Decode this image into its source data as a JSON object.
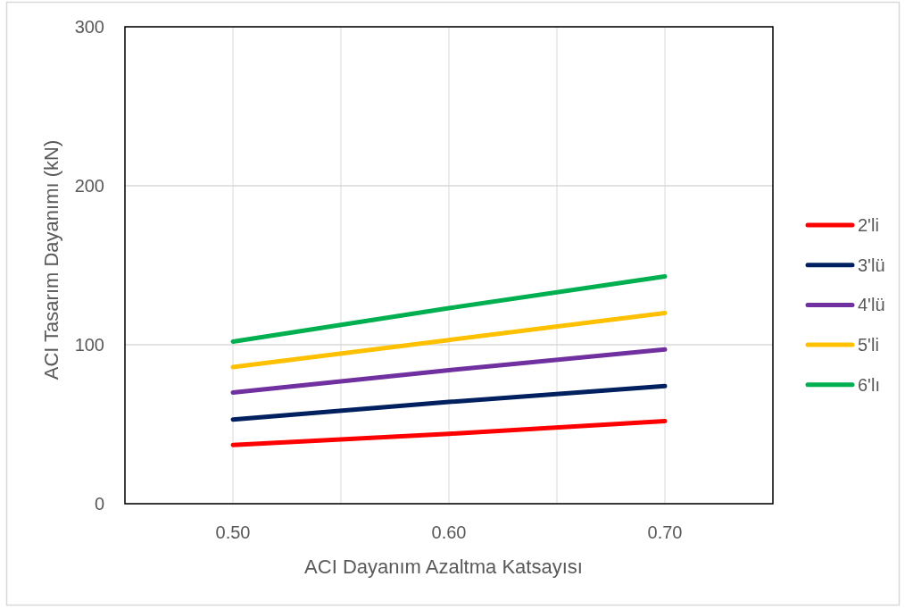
{
  "chart_data": {
    "type": "line",
    "xlabel": "ACI Dayanım Azaltma Katsayısı",
    "ylabel": "ACI Tasarım Dayanımı (kN)",
    "x": [
      0.5,
      0.6,
      0.7
    ],
    "series": [
      {
        "name": "2'li",
        "color": "#ff0000",
        "values": [
          37,
          44,
          52
        ]
      },
      {
        "name": "3'lü",
        "color": "#002060",
        "values": [
          53,
          64,
          74
        ]
      },
      {
        "name": "4'lü",
        "color": "#7030a0",
        "values": [
          70,
          84,
          97
        ]
      },
      {
        "name": "5'li",
        "color": "#ffc000",
        "values": [
          86,
          103,
          120
        ]
      },
      {
        "name": "6'lı",
        "color": "#00b050",
        "values": [
          102,
          123,
          143
        ]
      }
    ],
    "xlim": [
      0.45,
      0.75
    ],
    "xticks": [
      {
        "value": 0.5,
        "label": "0.50"
      },
      {
        "value": 0.55,
        "label": null
      },
      {
        "value": 0.6,
        "label": "0.60"
      },
      {
        "value": 0.65,
        "label": null
      },
      {
        "value": 0.7,
        "label": "0.70"
      }
    ],
    "ylim": [
      0,
      300
    ],
    "yticks": [
      0,
      100,
      200,
      300
    ],
    "grid": true,
    "legend": "right",
    "marker": "none",
    "line_style": "solid"
  }
}
